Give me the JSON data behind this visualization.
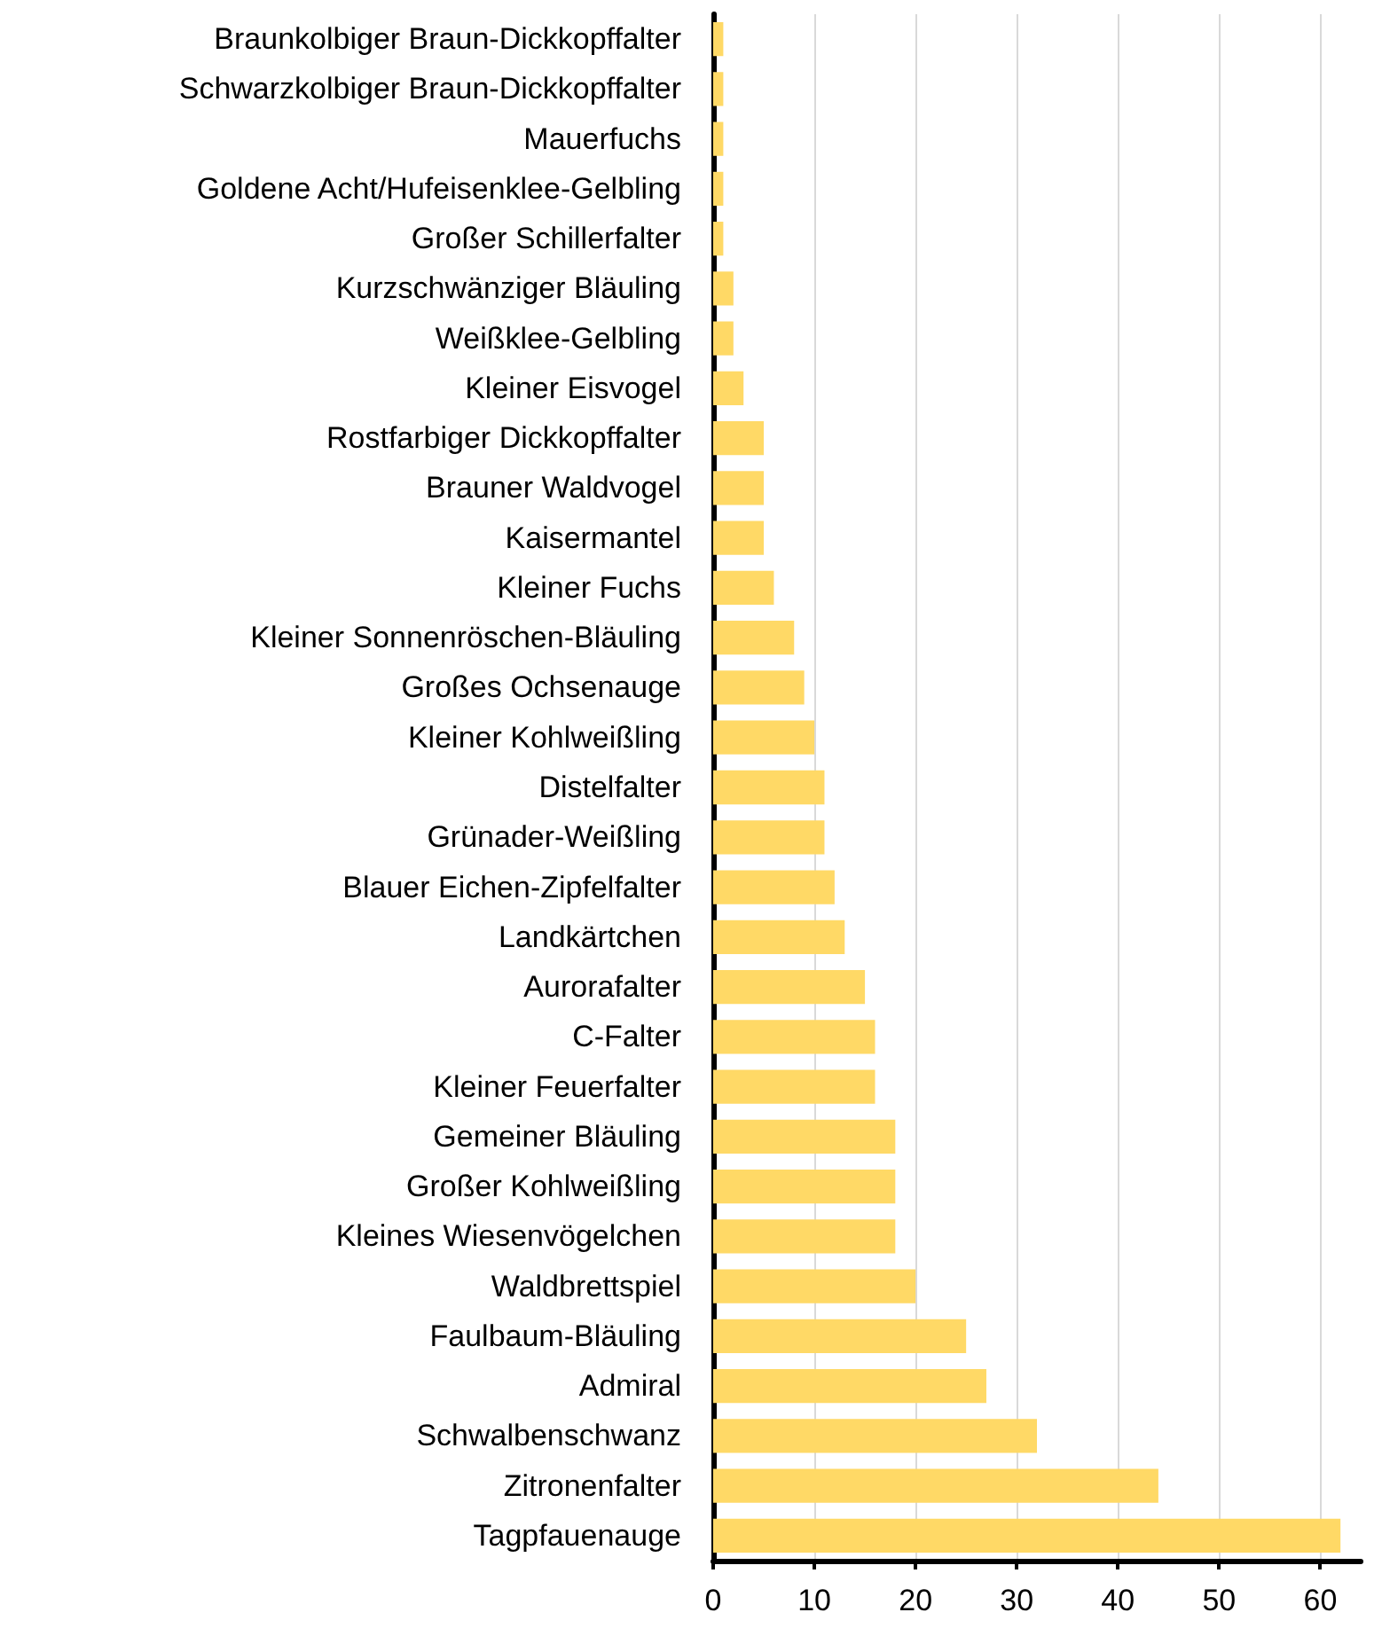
{
  "chart_data": {
    "type": "bar",
    "orientation": "horizontal",
    "categories": [
      "Braunkolbiger Braun-Dickkopffalter",
      "Schwarzkolbiger Braun-Dickkopffalter",
      "Mauerfuchs",
      "Goldene Acht/Hufeisenklee-Gelbling",
      "Großer Schillerfalter",
      "Kurzschwänziger Bläuling",
      "Weißklee-Gelbling",
      "Kleiner Eisvogel",
      "Rostfarbiger Dickkopffalter",
      "Brauner Waldvogel",
      "Kaisermantel",
      "Kleiner Fuchs",
      "Kleiner Sonnenröschen-Bläuling",
      "Großes Ochsenauge",
      "Kleiner Kohlweißling",
      "Distelfalter",
      "Grünader-Weißling",
      "Blauer Eichen-Zipfelfalter",
      "Landkärtchen",
      "Aurorafalter",
      "C-Falter",
      "Kleiner Feuerfalter",
      "Gemeiner Bläuling",
      "Großer Kohlweißling",
      "Kleines Wiesenvögelchen",
      "Waldbrettspiel",
      "Faulbaum-Bläuling",
      "Admiral",
      "Schwalbenschwanz",
      "Zitronenfalter",
      "Tagpfauenauge"
    ],
    "values": [
      1,
      1,
      1,
      1,
      1,
      2,
      2,
      3,
      5,
      5,
      5,
      6,
      8,
      9,
      10,
      11,
      11,
      12,
      13,
      15,
      16,
      16,
      18,
      18,
      18,
      20,
      25,
      27,
      32,
      44,
      62
    ],
    "color": "#ffd966",
    "xlim": [
      0,
      64
    ],
    "xticks": [
      0,
      10,
      20,
      30,
      40,
      50,
      60
    ],
    "grid": "x"
  }
}
